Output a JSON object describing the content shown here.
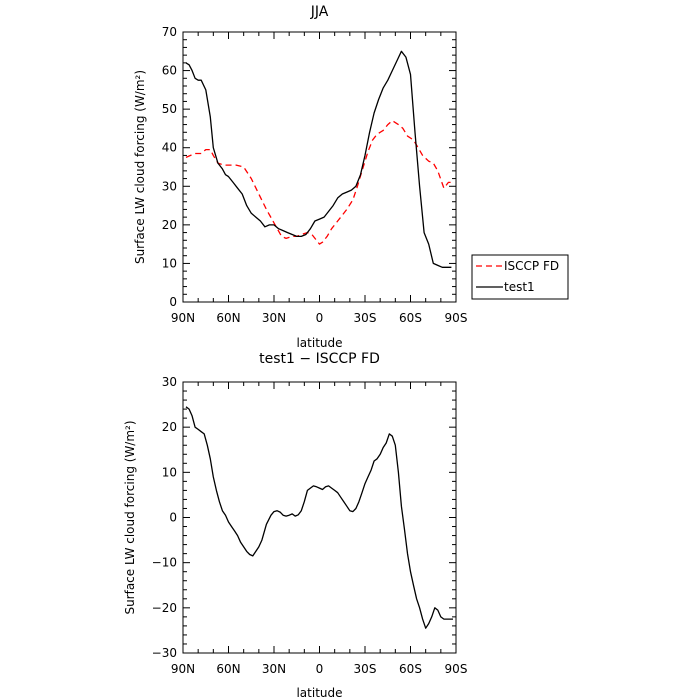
{
  "chart_data": [
    {
      "type": "line",
      "title": "JJA",
      "xlabel": "latitude",
      "ylabel": "Surface LW cloud forcing (W/m²)",
      "xlim": [
        90,
        -90
      ],
      "ylim": [
        0,
        70
      ],
      "x_ticks": [
        90,
        60,
        30,
        0,
        -30,
        -60,
        -90
      ],
      "x_tick_labels": [
        "90N",
        "60N",
        "30N",
        "0",
        "30S",
        "60S",
        "90S"
      ],
      "y_ticks": [
        0,
        10,
        20,
        30,
        40,
        50,
        60,
        70
      ],
      "y_tick_labels": [
        "0",
        "10",
        "20",
        "30",
        "40",
        "50",
        "60",
        "70"
      ],
      "grid": false,
      "legend_placement": "outside-right",
      "series": [
        {
          "name": "ISCCP FD",
          "color": "#ff0000",
          "dash": "dashed",
          "x": [
            88,
            85,
            82,
            78,
            75,
            72,
            70,
            67,
            63,
            60,
            55,
            50,
            45,
            40,
            35,
            30,
            25,
            22,
            18,
            15,
            12,
            8,
            5,
            2,
            0,
            -2,
            -5,
            -8,
            -12,
            -15,
            -18,
            -22,
            -25,
            -28,
            -32,
            -35,
            -38,
            -42,
            -45,
            -48,
            -52,
            -55,
            -58,
            -62,
            -65,
            -68,
            -72,
            -75,
            -78,
            -82,
            -85,
            -88
          ],
          "values": [
            37.5,
            38,
            38.5,
            38.5,
            39.5,
            39.5,
            38,
            36,
            35.5,
            35.5,
            35.5,
            35,
            32,
            28,
            24,
            20.5,
            17,
            16.5,
            17,
            17,
            17.5,
            18,
            17.5,
            16,
            15,
            15.5,
            17,
            19,
            21,
            22.5,
            24,
            26.5,
            30,
            34,
            39,
            42,
            43.5,
            44.5,
            46,
            47,
            46,
            45,
            43,
            42,
            40,
            38,
            36.5,
            36,
            34,
            29.5,
            31,
            31
          ]
        },
        {
          "name": "test1",
          "color": "#000000",
          "dash": "solid",
          "x": [
            88,
            86,
            84,
            82,
            80,
            78,
            75,
            72,
            70,
            67,
            64,
            62,
            60,
            57,
            54,
            51,
            48,
            45,
            42,
            39,
            36,
            33,
            30,
            27,
            24,
            21,
            18,
            15,
            12,
            9,
            6,
            3,
            0,
            -3,
            -6,
            -9,
            -12,
            -15,
            -18,
            -21,
            -24,
            -27,
            -30,
            -33,
            -36,
            -39,
            -42,
            -45,
            -48,
            -51,
            -54,
            -57,
            -60,
            -63,
            -66,
            -69,
            -72,
            -75,
            -78,
            -81,
            -84,
            -87
          ],
          "values": [
            62,
            61.5,
            60,
            58,
            57.5,
            57.5,
            55,
            48,
            40,
            36,
            34.5,
            33,
            32.5,
            31,
            29.5,
            28,
            25,
            23,
            22,
            21,
            19.5,
            20,
            20,
            19,
            18.5,
            18,
            17.5,
            17,
            17,
            17.5,
            19,
            21,
            21.5,
            22,
            23.5,
            25,
            27,
            28,
            28.5,
            29,
            30,
            33,
            38,
            44,
            49,
            52.5,
            55.5,
            57.5,
            60,
            62.5,
            65,
            63.5,
            59,
            44,
            30,
            18,
            15,
            10,
            9.5,
            9,
            9,
            9
          ]
        }
      ]
    },
    {
      "type": "line",
      "title": "test1 − ISCCP FD",
      "xlabel": "latitude",
      "ylabel": "Surface LW cloud forcing (W/m²)",
      "xlim": [
        90,
        -90
      ],
      "ylim": [
        -30,
        30
      ],
      "x_ticks": [
        90,
        60,
        30,
        0,
        -30,
        -60,
        -90
      ],
      "x_tick_labels": [
        "90N",
        "60N",
        "30N",
        "0",
        "30S",
        "60S",
        "90S"
      ],
      "y_ticks": [
        -30,
        -20,
        -10,
        0,
        10,
        20,
        30
      ],
      "y_tick_labels": [
        "−30",
        "−20",
        "−10",
        "0",
        "10",
        "20",
        "30"
      ],
      "grid": false,
      "series": [
        {
          "name": "",
          "color": "#000000",
          "dash": "solid",
          "x": [
            88,
            86,
            84,
            82,
            80,
            78,
            76,
            74,
            72,
            70,
            68,
            66,
            64,
            62,
            60,
            58,
            56,
            54,
            52,
            50,
            48,
            46,
            44,
            42,
            40,
            38,
            35,
            32,
            30,
            28,
            26,
            24,
            22,
            20,
            18,
            16,
            14,
            12,
            10,
            8,
            6,
            4,
            2,
            0,
            -2,
            -4,
            -6,
            -8,
            -10,
            -12,
            -14,
            -16,
            -18,
            -20,
            -22,
            -24,
            -26,
            -28,
            -30,
            -32,
            -34,
            -36,
            -38,
            -40,
            -42,
            -44,
            -46,
            -48,
            -50,
            -52,
            -54,
            -56,
            -58,
            -60,
            -62,
            -64,
            -66,
            -68,
            -70,
            -72,
            -74,
            -76,
            -78,
            -80,
            -82,
            -84,
            -86,
            -88
          ],
          "values": [
            24.5,
            24,
            22.5,
            20,
            19.5,
            19,
            18.5,
            16,
            13,
            9,
            6,
            3.5,
            1.5,
            0.5,
            -1,
            -2,
            -3,
            -4,
            -5.5,
            -6.5,
            -7.5,
            -8.2,
            -8.5,
            -7.5,
            -6.5,
            -5,
            -1.5,
            0.5,
            1.3,
            1.5,
            1.2,
            0.5,
            0.3,
            0.5,
            0.8,
            0.3,
            0.6,
            1.5,
            3.5,
            6,
            6.5,
            7,
            6.8,
            6.5,
            6.2,
            6.8,
            7,
            6.5,
            6,
            5.5,
            4.5,
            3.5,
            2.5,
            1.5,
            1.3,
            2,
            3.5,
            5.5,
            7.5,
            9,
            10.5,
            12.5,
            13,
            14,
            15.5,
            16.5,
            18.5,
            18,
            16,
            10,
            2.5,
            -2.5,
            -8,
            -12,
            -15,
            -18,
            -20,
            -22.5,
            -24.5,
            -23.5,
            -22,
            -20,
            -20.5,
            -22,
            -22.5,
            -22.5,
            -22.5,
            -22.5
          ]
        }
      ]
    }
  ]
}
